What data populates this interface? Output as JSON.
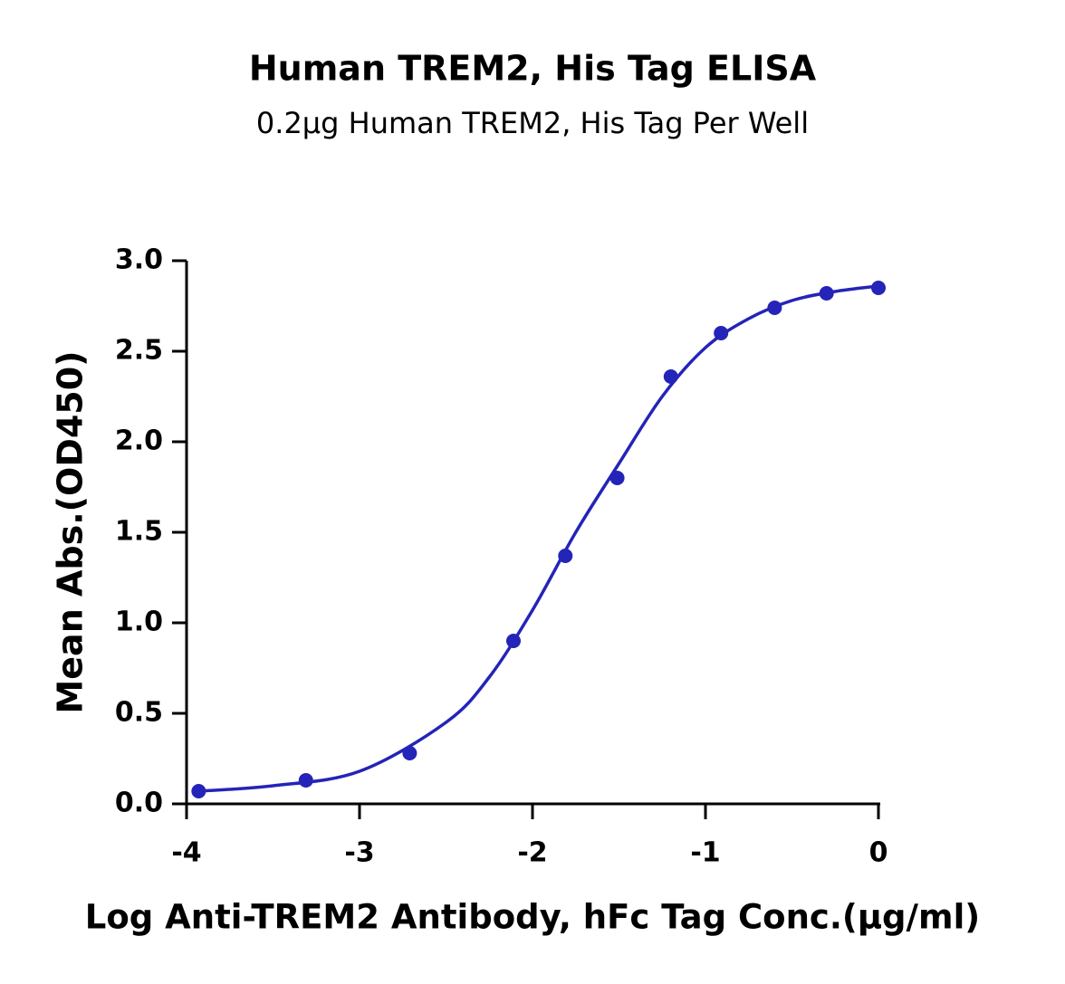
{
  "chart_data": {
    "type": "scatter",
    "title": "Human TREM2, His Tag ELISA",
    "subtitle": "0.2µg Human TREM2, His Tag Per Well",
    "x_label": "Log Anti-TREM2 Antibody, hFc Tag Conc.(µg/ml)",
    "y_label": "Mean Abs.(OD450)",
    "color": "#2424b8",
    "x": [
      -3.93,
      -3.31,
      -2.71,
      -2.11,
      -1.81,
      -1.51,
      -1.2,
      -0.91,
      -0.6,
      -0.3,
      0
    ],
    "values": [
      0.07,
      0.13,
      0.28,
      0.9,
      1.37,
      1.8,
      2.36,
      2.6,
      2.74,
      2.82,
      2.85
    ],
    "curve": {
      "x": [
        -3.93,
        -3.5,
        -3,
        -2.5,
        -2.25,
        -2,
        -1.75,
        -1.5,
        -1.25,
        -1,
        -0.75,
        -0.5,
        -0.25,
        0
      ],
      "values": [
        0.07,
        0.1,
        0.18,
        0.45,
        0.7,
        1.07,
        1.5,
        1.88,
        2.25,
        2.52,
        2.68,
        2.78,
        2.83,
        2.86
      ]
    },
    "xlim": [
      -4,
      0
    ],
    "xticks": [
      -4,
      -3,
      -2,
      -1,
      0
    ],
    "ylim": [
      0,
      3
    ],
    "yticks": [
      {
        "value": 0,
        "label": "0.0"
      },
      0.5,
      {
        "value": 1,
        "label": "1.0"
      },
      1.5,
      {
        "value": 2,
        "label": "2.0"
      },
      2.5,
      {
        "value": 3,
        "label": "3.0"
      }
    ]
  }
}
